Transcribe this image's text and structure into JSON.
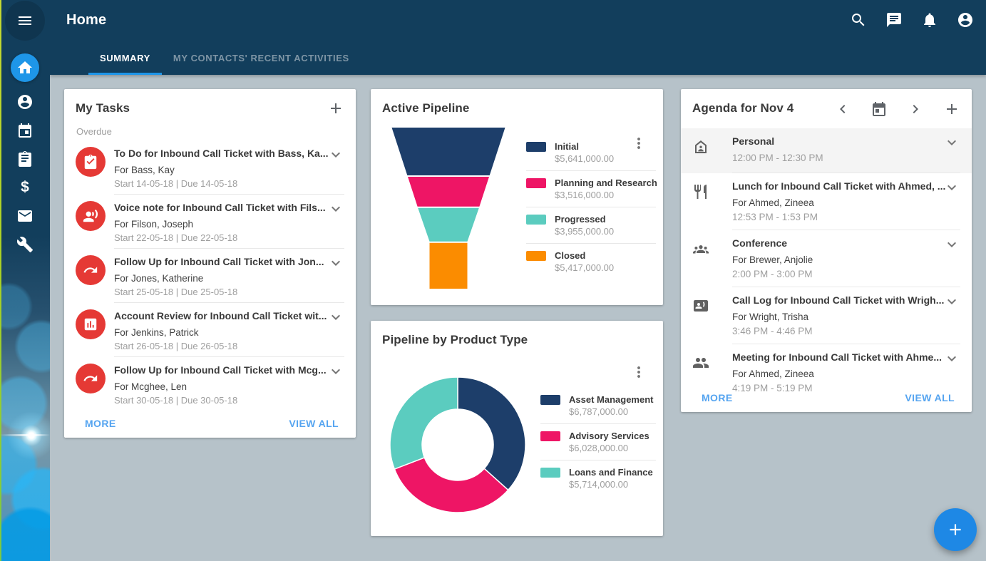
{
  "header": {
    "title": "Home",
    "tabs": [
      {
        "label": "SUMMARY",
        "active": true
      },
      {
        "label": "MY CONTACTS' RECENT ACTIVITIES",
        "active": false
      }
    ],
    "action_icons": [
      "search",
      "chat",
      "notifications",
      "account"
    ]
  },
  "sidebar": {
    "items": [
      "menu",
      "home",
      "contacts",
      "calendar",
      "tasks",
      "finance",
      "mail",
      "tools"
    ],
    "active_item": "home"
  },
  "tasks_card": {
    "title": "My Tasks",
    "section_label": "Overdue",
    "more_label": "MORE",
    "view_all_label": "VIEW ALL",
    "icon_color": "#e53935",
    "items": [
      {
        "icon": "todo",
        "title": "To Do for Inbound Call Ticket with Bass, Ka...",
        "for_line": "For Bass, Kay",
        "dates": "Start 14-05-18 | Due 14-05-18"
      },
      {
        "icon": "voice-note",
        "title": "Voice note for Inbound Call Ticket with Fils...",
        "for_line": "For Filson, Joseph",
        "dates": "Start 22-05-18 | Due 22-05-18"
      },
      {
        "icon": "follow-up",
        "title": "Follow Up for Inbound Call Ticket with Jon...",
        "for_line": "For Jones, Katherine",
        "dates": "Start 25-05-18 | Due 25-05-18"
      },
      {
        "icon": "account-review",
        "title": "Account Review for Inbound Call Ticket wit...",
        "for_line": "For Jenkins, Patrick",
        "dates": "Start 26-05-18 | Due 26-05-18"
      },
      {
        "icon": "follow-up",
        "title": "Follow Up for Inbound Call Ticket with Mcg...",
        "for_line": "For Mcghee, Len",
        "dates": "Start 30-05-18 | Due 30-05-18"
      }
    ]
  },
  "chart_data": [
    {
      "type": "funnel",
      "title": "Active Pipeline",
      "categories": [
        "Initial",
        "Planning and Research",
        "Progressed",
        "Closed"
      ],
      "values": [
        5641000,
        3516000,
        3955000,
        5417000
      ],
      "value_labels": [
        "$5,641,000.00",
        "$3,516,000.00",
        "$3,955,000.00",
        "$5,417,000.00"
      ],
      "colors": [
        "#1d3e6a",
        "#ee1565",
        "#5bccbf",
        "#fb8c00"
      ],
      "legend_position": "right"
    },
    {
      "type": "pie",
      "subtype": "donut",
      "title": "Pipeline by Product Type",
      "categories": [
        "Asset Management",
        "Advisory Services",
        "Loans and Finance"
      ],
      "values": [
        6787000,
        6028000,
        5714000
      ],
      "value_labels": [
        "$6,787,000.00",
        "$6,028,000.00",
        "$5,714,000.00"
      ],
      "colors": [
        "#1d3e6a",
        "#ee1565",
        "#5bccbf"
      ],
      "legend_position": "right"
    }
  ],
  "agenda_card": {
    "title": "Agenda for Nov 4",
    "header_icons": [
      "chevron-left",
      "calendar",
      "chevron-right",
      "plus"
    ],
    "more_label": "MORE",
    "view_all_label": "VIEW ALL",
    "items": [
      {
        "icon": "personal",
        "title": "Personal",
        "for_line": "",
        "time": "12:00 PM - 12:30 PM",
        "highlighted": true
      },
      {
        "icon": "lunch",
        "title": "Lunch for Inbound Call Ticket with Ahmed, ...",
        "for_line": "For Ahmed, Zineea",
        "time": "12:53 PM - 1:53 PM",
        "highlighted": false
      },
      {
        "icon": "conference",
        "title": "Conference",
        "for_line": "For Brewer, Anjolie",
        "time": "2:00 PM - 3:00 PM",
        "highlighted": false
      },
      {
        "icon": "call-log",
        "title": "Call Log for Inbound Call Ticket with Wrigh...",
        "for_line": "For Wright, Trisha",
        "time": "3:46 PM - 4:46 PM",
        "highlighted": false
      },
      {
        "icon": "meeting",
        "title": "Meeting for Inbound Call Ticket with Ahme...",
        "for_line": "For Ahmed, Zineea",
        "time": "4:19 PM - 5:19 PM",
        "highlighted": false
      }
    ]
  },
  "fab": {
    "icon": "plus"
  },
  "colors": {
    "accent": "#1e96e8",
    "header_bg": "#123e5c",
    "page_bg": "#b6c2c9",
    "link": "#55a4f0",
    "task_icon_bg": "#e53935",
    "fab_bg": "#1e88e5"
  }
}
